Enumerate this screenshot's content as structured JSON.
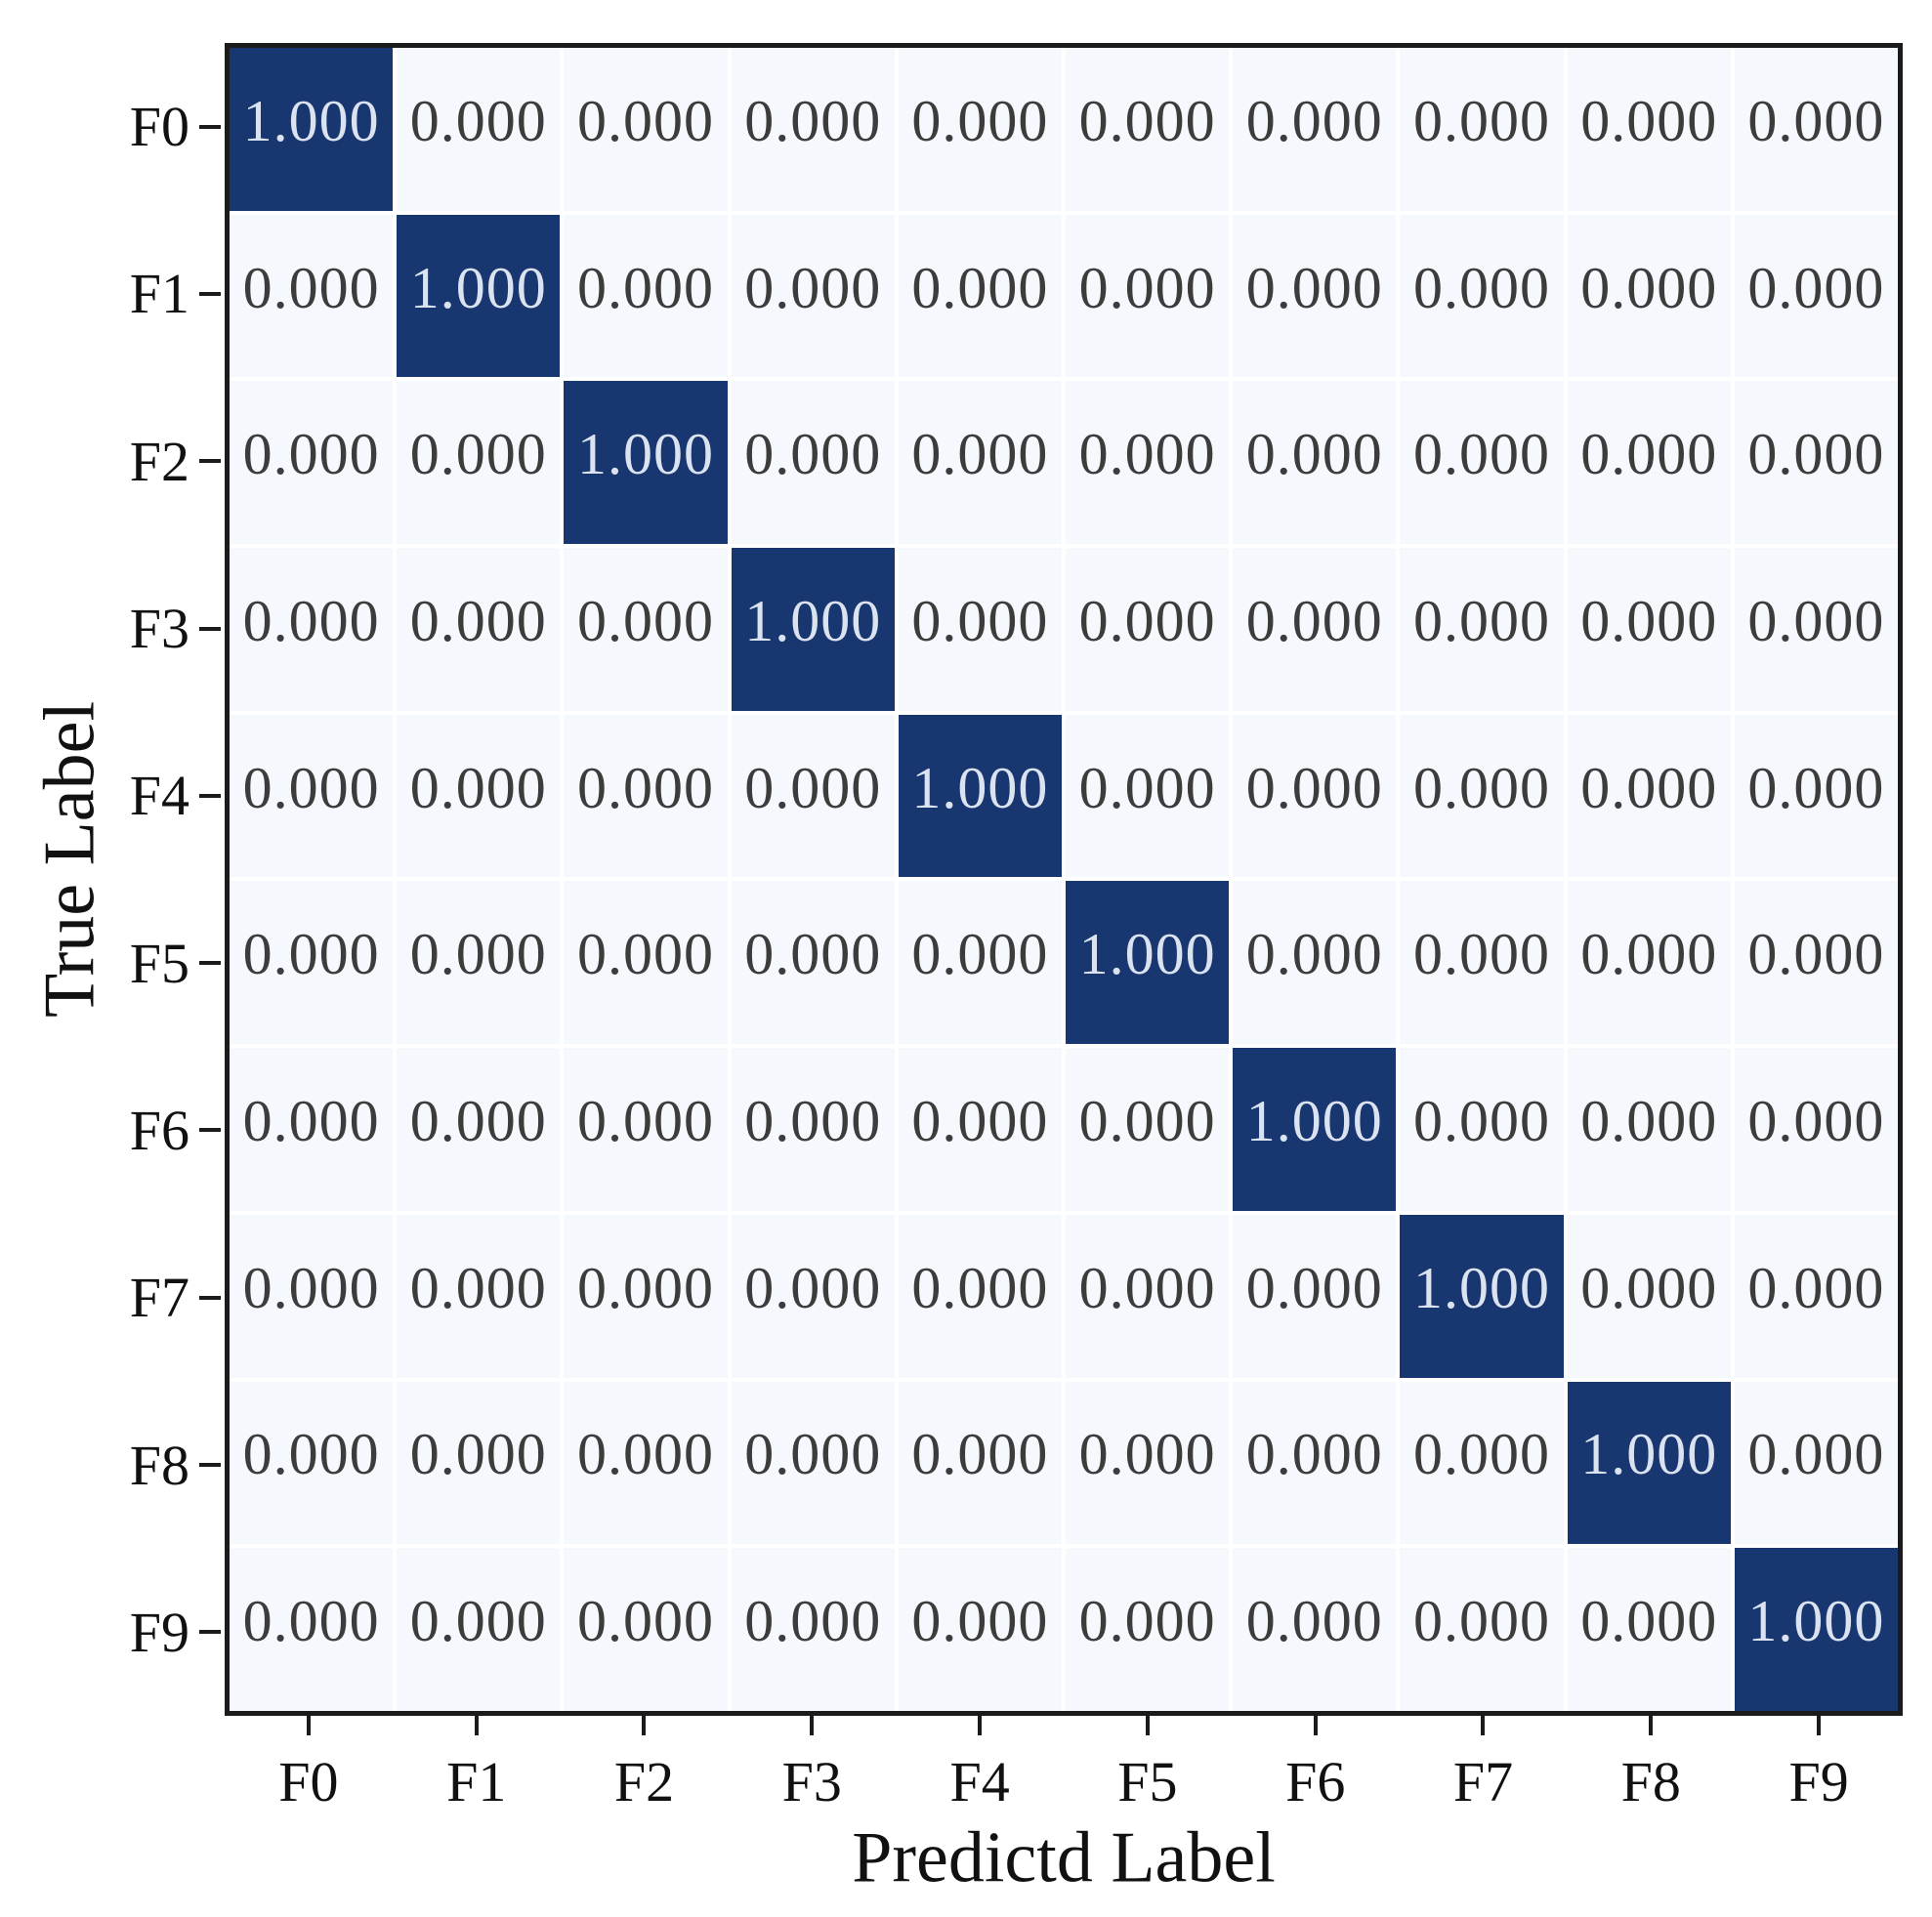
{
  "chart_data": {
    "type": "heatmap",
    "title": "",
    "xlabel": "Predictd Label",
    "ylabel": "True Label",
    "x_tick_labels": [
      "F0",
      "F1",
      "F2",
      "F3",
      "F4",
      "F5",
      "F6",
      "F7",
      "F8",
      "F9"
    ],
    "y_tick_labels": [
      "F0",
      "F1",
      "F2",
      "F3",
      "F4",
      "F5",
      "F6",
      "F7",
      "F8",
      "F9"
    ],
    "matrix": [
      [
        1,
        0,
        0,
        0,
        0,
        0,
        0,
        0,
        0,
        0
      ],
      [
        0,
        1,
        0,
        0,
        0,
        0,
        0,
        0,
        0,
        0
      ],
      [
        0,
        0,
        1,
        0,
        0,
        0,
        0,
        0,
        0,
        0
      ],
      [
        0,
        0,
        0,
        1,
        0,
        0,
        0,
        0,
        0,
        0
      ],
      [
        0,
        0,
        0,
        0,
        1,
        0,
        0,
        0,
        0,
        0
      ],
      [
        0,
        0,
        0,
        0,
        0,
        1,
        0,
        0,
        0,
        0
      ],
      [
        0,
        0,
        0,
        0,
        0,
        0,
        1,
        0,
        0,
        0
      ],
      [
        0,
        0,
        0,
        0,
        0,
        0,
        0,
        1,
        0,
        0
      ],
      [
        0,
        0,
        0,
        0,
        0,
        0,
        0,
        0,
        1,
        0
      ],
      [
        0,
        0,
        0,
        0,
        0,
        0,
        0,
        0,
        0,
        1
      ]
    ],
    "value_decimals": 3,
    "value_threshold": 0.5,
    "legend_position": "none",
    "grid": true,
    "colors": {
      "high_cell": "#18366f",
      "low_cell": "#f5f8fc",
      "text_on_high": "#dbe3f0",
      "text_on_low": "#3c3c3c",
      "axis_border": "#1b1b1b",
      "grid_gap": "#ffffff"
    }
  }
}
